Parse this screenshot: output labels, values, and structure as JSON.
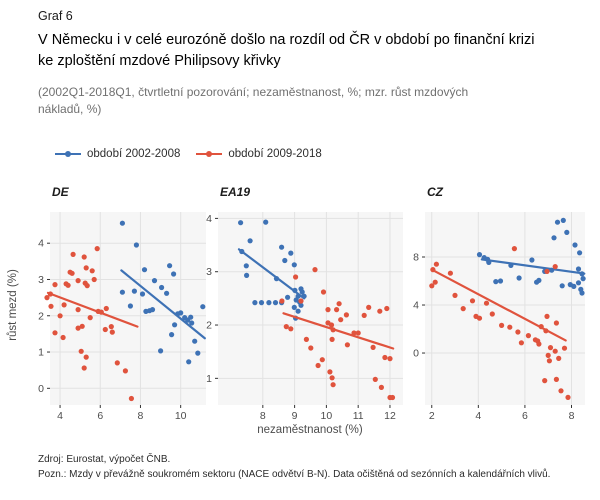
{
  "header": {
    "graf_label": "Graf 6",
    "title_line1": "V Německu i v celé eurozóně došlo na rozdíl od ČR v období po finanční krizi",
    "title_line2": "ke zploštění mzdové Philipsovy křivky",
    "subtitle_line1": "(2002Q1-2018Q1, čtvrtletní pozorování; nezaměstnanost, %; mzr. růst mzdových",
    "subtitle_line2": "nákladů, %)"
  },
  "legend": {
    "items": [
      {
        "label": "období 2002-2008",
        "color": "#3E72B5"
      },
      {
        "label": "období 2009-2018",
        "color": "#E0533D"
      }
    ]
  },
  "axes": {
    "x_title": "nezaměstnanost (%)",
    "y_title": "růst mezd (%)"
  },
  "footer": {
    "source": "Zdroj: Eurostat, výpočet ČNB.",
    "note": "Pozn.: Mzdy v převážně soukromém sektoru (NACE odvětví B-N). Data očištěná od sezónních a kalendářních vlivů."
  },
  "chart_data": {
    "type": "scatter",
    "title": "V Německu i v celé eurozóně došlo na rozdíl od ČR v období po finanční krizi ke zploštění mzdové Philipsovy křivky",
    "xlabel": "nezaměstnanost (%)",
    "ylabel": "růst mezd (%)",
    "grid": true,
    "legend_position": "top-left",
    "colors": {
      "obdobi_2002_2008": "#3E72B5",
      "obdobi_2009_2018": "#E0533D"
    },
    "panel_bg": "#F6F6F6",
    "gridline_color": "#E2E2E2",
    "panels": [
      {
        "title": "DE",
        "xlim": [
          3.5,
          11.26
        ],
        "ylim": [
          -0.46,
          4.86
        ],
        "x_ticks": [
          4,
          6,
          8,
          10
        ],
        "y_ticks": [
          0,
          1,
          2,
          3,
          4
        ],
        "series": [
          {
            "name": "období 2002-2008",
            "color": "#3E72B5",
            "points": [
              [
                7.1,
                4.55
              ],
              [
                7.8,
                3.95
              ],
              [
                8.2,
                3.27
              ],
              [
                9.45,
                3.38
              ],
              [
                9.65,
                3.15
              ],
              [
                8.7,
                2.97
              ],
              [
                9.05,
                2.78
              ],
              [
                7.1,
                2.65
              ],
              [
                7.7,
                2.68
              ],
              [
                8.1,
                2.6
              ],
              [
                9.3,
                2.62
              ],
              [
                7.5,
                2.27
              ],
              [
                8.27,
                2.12
              ],
              [
                8.45,
                2.14
              ],
              [
                8.6,
                2.17
              ],
              [
                9.85,
                2.05
              ],
              [
                10.0,
                2.08
              ],
              [
                9.7,
                1.75
              ],
              [
                10.2,
                1.95
              ],
              [
                10.35,
                1.88
              ],
              [
                10.5,
                1.96
              ],
              [
                10.55,
                1.8
              ],
              [
                11.1,
                2.25
              ],
              [
                9.55,
                1.48
              ],
              [
                10.7,
                1.3
              ],
              [
                10.85,
                0.97
              ],
              [
                10.4,
                0.73
              ],
              [
                9.0,
                1.03
              ]
            ],
            "trend": [
              [
                7.05,
                3.25
              ],
              [
                11.2,
                1.38
              ]
            ]
          },
          {
            "name": "období 2009-2018",
            "color": "#E0533D",
            "points": [
              [
                3.35,
                2.5
              ],
              [
                3.52,
                2.6
              ],
              [
                3.55,
                2.26
              ],
              [
                3.75,
                2.86
              ],
              [
                3.75,
                1.53
              ],
              [
                4.0,
                2.0
              ],
              [
                4.15,
                1.4
              ],
              [
                4.2,
                2.3
              ],
              [
                4.3,
                2.88
              ],
              [
                4.4,
                2.84
              ],
              [
                4.5,
                3.2
              ],
              [
                4.6,
                3.17
              ],
              [
                4.65,
                3.69
              ],
              [
                4.9,
                2.97
              ],
              [
                4.9,
                2.17
              ],
              [
                4.9,
                1.66
              ],
              [
                5.05,
                1.02
              ],
              [
                5.1,
                1.71
              ],
              [
                5.2,
                3.62
              ],
              [
                5.2,
                0.56
              ],
              [
                5.25,
                2.9
              ],
              [
                5.3,
                0.86
              ],
              [
                5.35,
                2.83
              ],
              [
                5.3,
                3.32
              ],
              [
                5.5,
                1.95
              ],
              [
                5.6,
                3.24
              ],
              [
                5.7,
                3.0
              ],
              [
                5.85,
                3.85
              ],
              [
                5.9,
                2.12
              ],
              [
                6.05,
                2.1
              ],
              [
                6.25,
                1.62
              ],
              [
                6.3,
                2.2
              ],
              [
                6.55,
                1.7
              ],
              [
                6.6,
                1.55
              ],
              [
                6.85,
                0.7
              ],
              [
                7.25,
                0.48
              ],
              [
                7.55,
                -0.28
              ]
            ],
            "trend": [
              [
                3.4,
                2.63
              ],
              [
                7.85,
                1.7
              ]
            ]
          }
        ]
      },
      {
        "title": "EA19",
        "xlim": [
          6.59,
          12.41
        ],
        "ylim": [
          0.5,
          4.12
        ],
        "x_ticks": [
          8,
          9,
          10,
          11,
          12
        ],
        "y_ticks": [
          1,
          2,
          3,
          4
        ],
        "series": [
          {
            "name": "období 2002-2008",
            "color": "#3E72B5",
            "points": [
              [
                7.3,
                3.92
              ],
              [
                8.09,
                3.93
              ],
              [
                7.6,
                3.58
              ],
              [
                7.34,
                3.38
              ],
              [
                7.48,
                3.11
              ],
              [
                7.49,
                2.93
              ],
              [
                8.59,
                3.46
              ],
              [
                8.88,
                3.35
              ],
              [
                8.69,
                3.21
              ],
              [
                8.99,
                3.13
              ],
              [
                8.43,
                2.87
              ],
              [
                7.75,
                2.42
              ],
              [
                7.96,
                2.42
              ],
              [
                8.19,
                2.42
              ],
              [
                8.4,
                2.42
              ],
              [
                8.59,
                2.42
              ],
              [
                8.78,
                2.52
              ],
              [
                9.01,
                2.65
              ],
              [
                9.11,
                2.54
              ],
              [
                9.16,
                2.43
              ],
              [
                9.24,
                2.62
              ],
              [
                9.3,
                2.54
              ],
              [
                9.2,
                2.68
              ],
              [
                8.99,
                2.33
              ],
              [
                9.11,
                2.26
              ],
              [
                9.03,
                2.13
              ],
              [
                9.2,
                2.37
              ],
              [
                9.05,
                2.47
              ]
            ],
            "trend": [
              [
                7.25,
                3.42
              ],
              [
                9.3,
                2.5
              ]
            ]
          },
          {
            "name": "období 2009-2018",
            "color": "#E0533D",
            "points": [
              [
                9.64,
                3.04
              ],
              [
                9.03,
                2.9
              ],
              [
                9.91,
                2.62
              ],
              [
                10.05,
                2.29
              ],
              [
                10.32,
                2.29
              ],
              [
                10.63,
                2.19
              ],
              [
                10.05,
                2.04
              ],
              [
                10.16,
                2.0
              ],
              [
                10.21,
                1.91
              ],
              [
                10.18,
                1.73
              ],
              [
                10.87,
                1.85
              ],
              [
                11.0,
                1.85
              ],
              [
                11.19,
                2.18
              ],
              [
                11.33,
                2.33
              ],
              [
                11.9,
                2.31
              ],
              [
                11.68,
                2.26
              ],
              [
                10.66,
                1.63
              ],
              [
                9.37,
                1.73
              ],
              [
                9.51,
                1.57
              ],
              [
                9.87,
                1.35
              ],
              [
                9.74,
                1.24
              ],
              [
                10.11,
                1.12
              ],
              [
                10.18,
                1.01
              ],
              [
                10.21,
                0.88
              ],
              [
                11.84,
                1.39
              ],
              [
                12.0,
                1.37
              ],
              [
                11.54,
                0.98
              ],
              [
                11.73,
                0.83
              ],
              [
                12.0,
                0.64
              ],
              [
                12.08,
                0.64
              ],
              [
                11.47,
                1.58
              ],
              [
                10.45,
                2.1
              ],
              [
                8.74,
                1.97
              ],
              [
                8.88,
                1.93
              ],
              [
                9.2,
                2.45
              ],
              [
                8.6,
                2.45
              ],
              [
                10.4,
                2.4
              ]
            ],
            "trend": [
              [
                8.65,
                2.22
              ],
              [
                12.1,
                1.56
              ]
            ]
          }
        ]
      },
      {
        "title": "CZ",
        "xlim": [
          1.71,
          8.58
        ],
        "ylim": [
          -4.33,
          11.75
        ],
        "x_ticks": [
          2,
          4,
          6,
          8
        ],
        "y_ticks": [
          0,
          4,
          8
        ],
        "series": [
          {
            "name": "období 2002-2008",
            "color": "#3E72B5",
            "points": [
              [
                4.05,
                8.2
              ],
              [
                4.25,
                7.95
              ],
              [
                4.4,
                7.8
              ],
              [
                4.45,
                7.55
              ],
              [
                4.75,
                5.95
              ],
              [
                4.95,
                6.0
              ],
              [
                5.4,
                7.3
              ],
              [
                5.75,
                6.25
              ],
              [
                6.3,
                7.75
              ],
              [
                6.5,
                5.9
              ],
              [
                6.6,
                6.05
              ],
              [
                6.85,
                6.8
              ],
              [
                7.15,
                6.9
              ],
              [
                7.25,
                9.6
              ],
              [
                7.4,
                10.9
              ],
              [
                7.65,
                11.05
              ],
              [
                7.8,
                10.05
              ],
              [
                8.15,
                9.0
              ],
              [
                8.35,
                8.35
              ],
              [
                8.3,
                7.0
              ],
              [
                8.45,
                6.6
              ],
              [
                8.5,
                6.2
              ],
              [
                7.95,
                5.7
              ],
              [
                8.1,
                5.55
              ],
              [
                8.3,
                5.85
              ],
              [
                8.4,
                5.3
              ],
              [
                8.45,
                5.0
              ],
              [
                7.6,
                5.6
              ]
            ],
            "trend": [
              [
                4.15,
                7.8
              ],
              [
                8.55,
                6.62
              ]
            ]
          },
          {
            "name": "období 2009-2018",
            "color": "#E0533D",
            "points": [
              [
                2.2,
                7.4
              ],
              [
                2.05,
                6.95
              ],
              [
                2.8,
                6.65
              ],
              [
                2.15,
                5.9
              ],
              [
                2.0,
                5.6
              ],
              [
                3.0,
                4.8
              ],
              [
                3.35,
                3.7
              ],
              [
                3.75,
                4.35
              ],
              [
                3.9,
                3.05
              ],
              [
                4.05,
                2.9
              ],
              [
                4.35,
                4.15
              ],
              [
                4.6,
                3.25
              ],
              [
                5.0,
                2.3
              ],
              [
                5.35,
                2.15
              ],
              [
                5.55,
                8.7
              ],
              [
                5.7,
                1.75
              ],
              [
                5.85,
                0.85
              ],
              [
                6.15,
                1.45
              ],
              [
                6.45,
                1.1
              ],
              [
                6.55,
                1.0
              ],
              [
                6.6,
                0.75
              ],
              [
                6.7,
                2.2
              ],
              [
                6.95,
                3.05
              ],
              [
                6.9,
                1.85
              ],
              [
                6.95,
                6.8
              ],
              [
                7.0,
                -0.2
              ],
              [
                7.05,
                -0.65
              ],
              [
                7.1,
                0.45
              ],
              [
                7.3,
                7.2
              ],
              [
                7.35,
                2.5
              ],
              [
                7.3,
                0.15
              ],
              [
                7.45,
                -0.45
              ],
              [
                7.7,
                0.4
              ],
              [
                6.85,
                -2.3
              ],
              [
                7.35,
                -2.2
              ],
              [
                7.55,
                -3.15
              ],
              [
                7.85,
                -3.7
              ]
            ],
            "trend": [
              [
                2.05,
                6.9
              ],
              [
                7.75,
                1.05
              ]
            ]
          }
        ]
      }
    ]
  }
}
